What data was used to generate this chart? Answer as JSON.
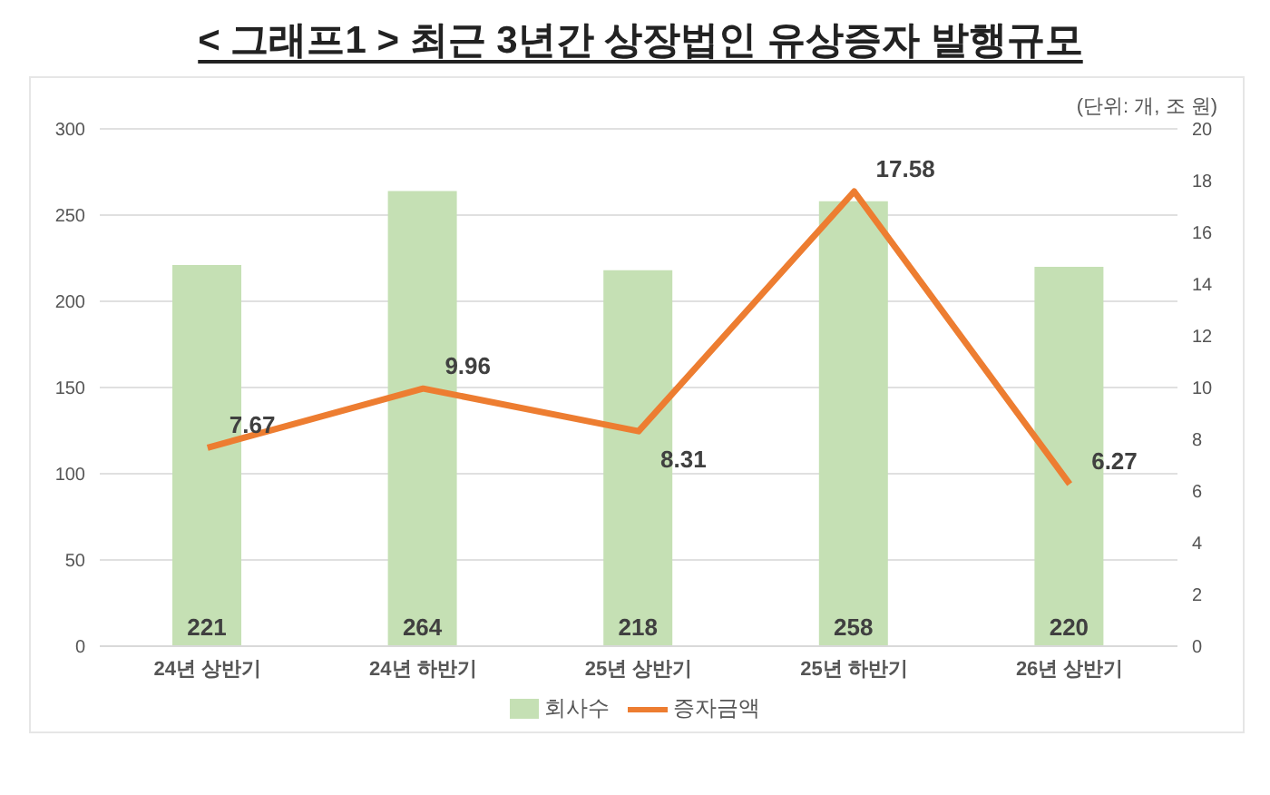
{
  "chart_data": {
    "type": "bar",
    "title": "< 그래프1 > 최근 3년간 상장법인 유상증자 발행규모",
    "annotations": [
      "(단위: 개, 조 원)"
    ],
    "categories": [
      "24년 상반기",
      "24년 하반기",
      "25년 상반기",
      "25년 하반기",
      "26년 상반기"
    ],
    "series": [
      {
        "name": "회사수",
        "color": "#c5e0b4",
        "values": [
          221,
          264,
          218,
          258,
          220
        ]
      },
      {
        "name": "증자금액",
        "type": "line",
        "axis": "y2",
        "color": "#ed7d31",
        "values": [
          7.67,
          9.96,
          8.31,
          17.58,
          6.27
        ]
      }
    ],
    "ylim": [
      0,
      300
    ],
    "yticks": [
      0,
      50,
      100,
      150,
      200,
      250,
      300
    ],
    "y2lim": [
      0,
      20
    ],
    "y2ticks": [
      0,
      2,
      4,
      6,
      8,
      10,
      12,
      14,
      16,
      18,
      20
    ],
    "grid": "y",
    "legend": "bottom",
    "data_labels": true,
    "marker": "none",
    "line_style": "solid"
  }
}
